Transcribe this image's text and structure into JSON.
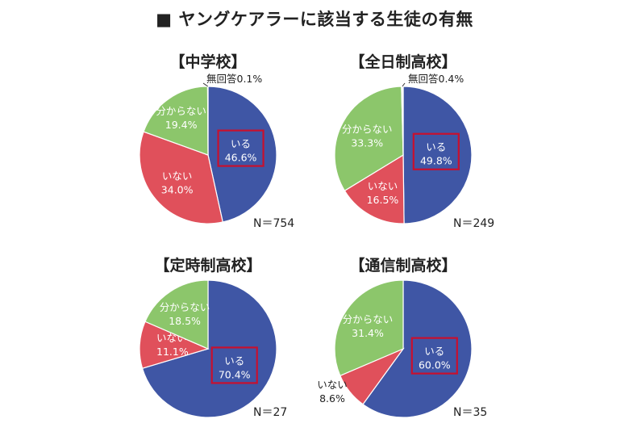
{
  "title": "■ ヤングケアラーに該当する生徒の有無",
  "colors": {
    "iru": "#3f56a5",
    "inai": "#e0505b",
    "wakaranai": "#8cc66b",
    "muka": "#ffffff",
    "highlight": "#c8102e"
  },
  "chart_data": [
    {
      "type": "pie",
      "title": "【中学校】",
      "n_label": "N＝754",
      "slices": [
        {
          "name": "いる",
          "value": 46.6,
          "label": "46.6%"
        },
        {
          "name": "いない",
          "value": 34.0,
          "label": "34.0%"
        },
        {
          "name": "分からない",
          "value": 19.4,
          "label": "19.4%"
        },
        {
          "name": "無回答",
          "value": 0.1,
          "label": "0.1%"
        }
      ]
    },
    {
      "type": "pie",
      "title": "【全日制高校】",
      "n_label": "N＝249",
      "slices": [
        {
          "name": "いる",
          "value": 49.8,
          "label": "49.8%"
        },
        {
          "name": "いない",
          "value": 16.5,
          "label": "16.5%"
        },
        {
          "name": "分からない",
          "value": 33.3,
          "label": "33.3%"
        },
        {
          "name": "無回答",
          "value": 0.4,
          "label": "0.4%"
        }
      ]
    },
    {
      "type": "pie",
      "title": "【定時制高校】",
      "n_label": "N＝27",
      "slices": [
        {
          "name": "いる",
          "value": 70.4,
          "label": "70.4%"
        },
        {
          "name": "いない",
          "value": 11.1,
          "label": "11.1%"
        },
        {
          "name": "分からない",
          "value": 18.5,
          "label": "18.5%"
        }
      ]
    },
    {
      "type": "pie",
      "title": "【通信制高校】",
      "n_label": "N＝35",
      "slices": [
        {
          "name": "いる",
          "value": 60.0,
          "label": "60.0%"
        },
        {
          "name": "いない",
          "value": 8.6,
          "label": "8.6%"
        },
        {
          "name": "分からない",
          "value": 31.4,
          "label": "31.4%"
        }
      ]
    }
  ]
}
